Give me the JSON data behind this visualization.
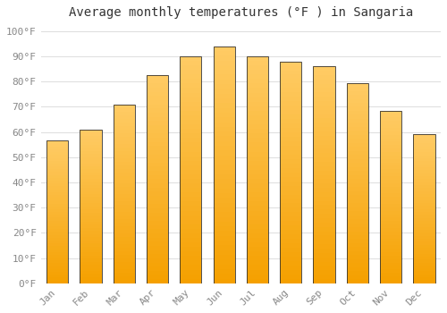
{
  "title": "Average monthly temperatures (°F ) in Sangaria",
  "months": [
    "Jan",
    "Feb",
    "Mar",
    "Apr",
    "May",
    "Jun",
    "Jul",
    "Aug",
    "Sep",
    "Oct",
    "Nov",
    "Dec"
  ],
  "values": [
    56.5,
    61,
    71,
    82.5,
    90,
    94,
    90,
    88,
    86,
    79.5,
    68.5,
    59
  ],
  "bar_color_top": "#FFC04C",
  "bar_color_bottom": "#F5A623",
  "bar_edge_color": "#333333",
  "background_color": "#FFFFFF",
  "grid_color": "#DDDDDD",
  "yticks": [
    0,
    10,
    20,
    30,
    40,
    50,
    60,
    70,
    80,
    90,
    100
  ],
  "ylim": [
    0,
    103
  ],
  "title_fontsize": 10,
  "tick_fontsize": 8,
  "tick_color": "#888888"
}
